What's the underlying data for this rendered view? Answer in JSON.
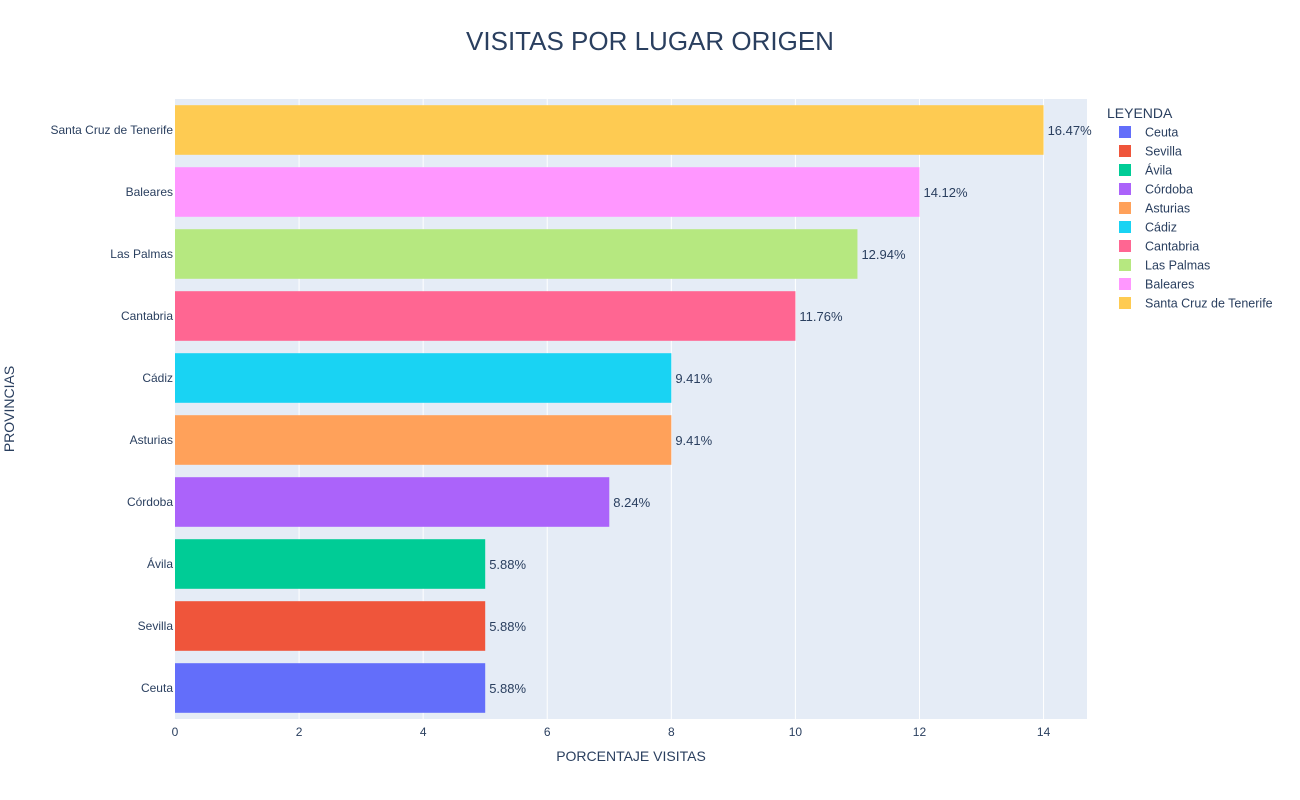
{
  "chart_data": {
    "type": "bar",
    "orientation": "horizontal",
    "title": "VISITAS POR LUGAR ORIGEN",
    "xlabel": "PORCENTAJE VISITAS",
    "ylabel": "PROVINCIAS",
    "xlim": [
      0,
      14.7
    ],
    "xticks": [
      0,
      2,
      4,
      6,
      8,
      10,
      12,
      14
    ],
    "grid": true,
    "legend_title": "LEYENDA",
    "legend_position": "right",
    "series": [
      {
        "name": "Ceuta",
        "category": "Ceuta",
        "value": 5,
        "label": "5.88%",
        "color": "#636efa"
      },
      {
        "name": "Sevilla",
        "category": "Sevilla",
        "value": 5,
        "label": "5.88%",
        "color": "#ef553b"
      },
      {
        "name": "Ávila",
        "category": "Ávila",
        "value": 5,
        "label": "5.88%",
        "color": "#00cc96"
      },
      {
        "name": "Córdoba",
        "category": "Córdoba",
        "value": 7,
        "label": "8.24%",
        "color": "#ab63fa"
      },
      {
        "name": "Asturias",
        "category": "Asturias",
        "value": 8,
        "label": "9.41%",
        "color": "#ffa15a"
      },
      {
        "name": "Cádiz",
        "category": "Cádiz",
        "value": 8,
        "label": "9.41%",
        "color": "#19d3f3"
      },
      {
        "name": "Cantabria",
        "category": "Cantabria",
        "value": 10,
        "label": "11.76%",
        "color": "#ff6692"
      },
      {
        "name": "Las Palmas",
        "category": "Las Palmas",
        "value": 11,
        "label": "12.94%",
        "color": "#b6e880"
      },
      {
        "name": "Baleares",
        "category": "Baleares",
        "value": 12,
        "label": "14.12%",
        "color": "#ff97ff"
      },
      {
        "name": "Santa Cruz de Tenerife",
        "category": "Santa Cruz de Tenerife",
        "value": 14,
        "label": "16.47%",
        "color": "#fecb52"
      }
    ],
    "plot_background": "#e5ecf6",
    "grid_color": "#ffffff"
  }
}
